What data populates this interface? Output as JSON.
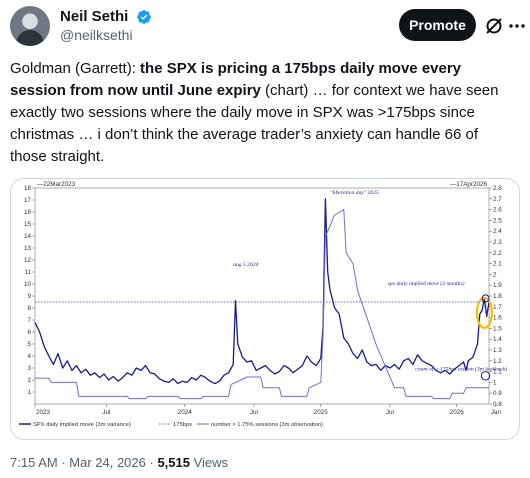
{
  "author": {
    "display_name": "Neil Sethi",
    "handle": "@neilksethi",
    "verified_color": "#1d9bf0"
  },
  "actions": {
    "promote_label": "Promote",
    "grok_icon": "grok-icon",
    "more_icon": "more-icon"
  },
  "tweet": {
    "prefix": "Goldman (Garrett): ",
    "bold": "the SPX is pricing a 175bps daily move every session from now until June expiry",
    "suffix": " (chart) … for context we have seen exactly two sessions where the daily move in SPX was >175bps since christmas … i don’t think the average trader’s anxiety can handle 66 of those straight."
  },
  "meta": {
    "time": "7:15 AM",
    "sep1": " · ",
    "date": "Mar 24, 2026",
    "sep2": " · ",
    "views": "5,515",
    "views_label": " Views"
  },
  "chart_data": {
    "type": "line",
    "start_label": "22Mar2023",
    "end_label": "17Apr2026",
    "x_ticks": [
      "2023",
      "Jul",
      "2024",
      "Jul",
      "2025",
      "Jul",
      "2026",
      "Jan"
    ],
    "left_axis": {
      "ylim": [
        0,
        18
      ],
      "ticks": [
        "1",
        "2",
        "3",
        "4",
        "5",
        "6",
        "7",
        "8",
        "9",
        "10",
        "11",
        "12",
        "13",
        "14",
        "15",
        "16",
        "17",
        "18"
      ]
    },
    "right_axis": {
      "ylim": [
        0.8,
        2.8
      ],
      "ticks": [
        "0.8",
        "0.9",
        "1",
        "1.1",
        "1.2",
        "1.3",
        "1.4",
        "1.5",
        "1.6",
        "1.7",
        "1.8",
        "1.9",
        "2",
        "2.1",
        "2.2",
        "2.3",
        "2.4",
        "2.5",
        "2.6",
        "2.7",
        "2.8"
      ]
    },
    "threshold": 8.5,
    "annotations": {
      "aug": "aug 5 2024",
      "liberation": "\"liberation day\" 2025",
      "implied": "spx daily implied move (3 months)",
      "count": "count of > 175bps session (3m lookback)"
    },
    "legend": [
      "SPX daily implied move (3m variance)",
      "175bps",
      "number > 1.75% sessions (3m observation)"
    ],
    "series": [
      {
        "name": "SPX daily implied move (3m variance)",
        "axis": "left",
        "color": "#1a1a8c",
        "points": [
          [
            0,
            6.8
          ],
          [
            2,
            6.0
          ],
          [
            4,
            4.8
          ],
          [
            6,
            4.0
          ],
          [
            8,
            3.3
          ],
          [
            10,
            4.2
          ],
          [
            12,
            3.0
          ],
          [
            14,
            3.6
          ],
          [
            16,
            2.8
          ],
          [
            18,
            3.2
          ],
          [
            20,
            2.6
          ],
          [
            22,
            2.9
          ],
          [
            24,
            2.4
          ],
          [
            26,
            2.6
          ],
          [
            28,
            2.2
          ],
          [
            30,
            2.5
          ],
          [
            32,
            2.0
          ],
          [
            34,
            2.3
          ],
          [
            36,
            1.9
          ],
          [
            38,
            2.2
          ],
          [
            40,
            2.6
          ],
          [
            42,
            2.4
          ],
          [
            44,
            3.0
          ],
          [
            46,
            2.8
          ],
          [
            48,
            3.2
          ],
          [
            50,
            2.6
          ],
          [
            52,
            2.5
          ],
          [
            54,
            2.1
          ],
          [
            56,
            1.9
          ],
          [
            58,
            1.8
          ],
          [
            60,
            2.1
          ],
          [
            62,
            1.7
          ],
          [
            64,
            1.9
          ],
          [
            66,
            1.8
          ],
          [
            68,
            2.2
          ],
          [
            70,
            2.0
          ],
          [
            72,
            2.4
          ],
          [
            74,
            2.2
          ],
          [
            76,
            1.9
          ],
          [
            78,
            1.7
          ],
          [
            80,
            1.9
          ],
          [
            82,
            2.4
          ],
          [
            84,
            2.6
          ],
          [
            86,
            3.3
          ],
          [
            87,
            8.6
          ],
          [
            88,
            5.0
          ],
          [
            90,
            3.9
          ],
          [
            92,
            3.5
          ],
          [
            94,
            3.6
          ],
          [
            96,
            2.8
          ],
          [
            98,
            3.0
          ],
          [
            100,
            3.2
          ],
          [
            102,
            2.8
          ],
          [
            104,
            2.5
          ],
          [
            106,
            2.7
          ],
          [
            108,
            3.2
          ],
          [
            110,
            3.0
          ],
          [
            112,
            2.6
          ],
          [
            114,
            2.9
          ],
          [
            116,
            3.2
          ],
          [
            118,
            4.0
          ],
          [
            120,
            3.5
          ],
          [
            122,
            3.2
          ],
          [
            124,
            3.8
          ],
          [
            125,
            6.5
          ],
          [
            126,
            17.1
          ],
          [
            127,
            11.0
          ],
          [
            128,
            9.5
          ],
          [
            130,
            8.0
          ],
          [
            132,
            7.5
          ],
          [
            134,
            5.5
          ],
          [
            136,
            5.0
          ],
          [
            138,
            4.2
          ],
          [
            140,
            3.8
          ],
          [
            142,
            4.5
          ],
          [
            144,
            3.5
          ],
          [
            146,
            3.2
          ],
          [
            148,
            3.3
          ],
          [
            150,
            2.8
          ],
          [
            152,
            3.2
          ],
          [
            154,
            3.0
          ],
          [
            156,
            3.3
          ],
          [
            158,
            2.9
          ],
          [
            160,
            3.6
          ],
          [
            162,
            3.8
          ],
          [
            164,
            3.3
          ],
          [
            166,
            4.1
          ],
          [
            168,
            3.6
          ],
          [
            170,
            3.4
          ],
          [
            172,
            3.2
          ],
          [
            174,
            2.8
          ],
          [
            176,
            2.6
          ],
          [
            178,
            2.8
          ],
          [
            180,
            2.5
          ],
          [
            182,
            2.9
          ],
          [
            184,
            3.2
          ],
          [
            186,
            3.5
          ],
          [
            187,
            2.8
          ],
          [
            188,
            3.6
          ],
          [
            190,
            3.9
          ],
          [
            192,
            5.0
          ],
          [
            193,
            7.5
          ],
          [
            194,
            7.8
          ],
          [
            195,
            8.8
          ],
          [
            196,
            7.3
          ],
          [
            197,
            8.5
          ]
        ]
      },
      {
        "name": "number > 1.75% sessions (3m observation)",
        "axis": "right",
        "color": "#6f6fd6",
        "points": [
          [
            0,
            1.04
          ],
          [
            6,
            1.04
          ],
          [
            7,
            1.0
          ],
          [
            18,
            1.0
          ],
          [
            19,
            0.87
          ],
          [
            40,
            0.87
          ],
          [
            41,
            0.85
          ],
          [
            48,
            0.85
          ],
          [
            49,
            0.87
          ],
          [
            62,
            0.87
          ],
          [
            63,
            0.85
          ],
          [
            72,
            0.85
          ],
          [
            73,
            0.87
          ],
          [
            84,
            0.87
          ],
          [
            85,
            0.98
          ],
          [
            92,
            1.05
          ],
          [
            98,
            1.05
          ],
          [
            99,
            0.95
          ],
          [
            106,
            0.95
          ],
          [
            107,
            0.87
          ],
          [
            118,
            0.87
          ],
          [
            119,
            0.95
          ],
          [
            124,
            1.0
          ],
          [
            125,
            1.45
          ],
          [
            126,
            2.35
          ],
          [
            130,
            2.55
          ],
          [
            134,
            2.6
          ],
          [
            135,
            2.2
          ],
          [
            138,
            2.1
          ],
          [
            140,
            1.85
          ],
          [
            144,
            1.6
          ],
          [
            148,
            1.35
          ],
          [
            150,
            1.25
          ],
          [
            154,
            1.05
          ],
          [
            156,
            0.95
          ],
          [
            160,
            0.95
          ],
          [
            161,
            0.87
          ],
          [
            172,
            0.87
          ],
          [
            173,
            0.85
          ],
          [
            180,
            0.85
          ],
          [
            181,
            0.9
          ],
          [
            186,
            0.9
          ],
          [
            187,
            0.95
          ],
          [
            197,
            0.95
          ]
        ]
      }
    ]
  }
}
